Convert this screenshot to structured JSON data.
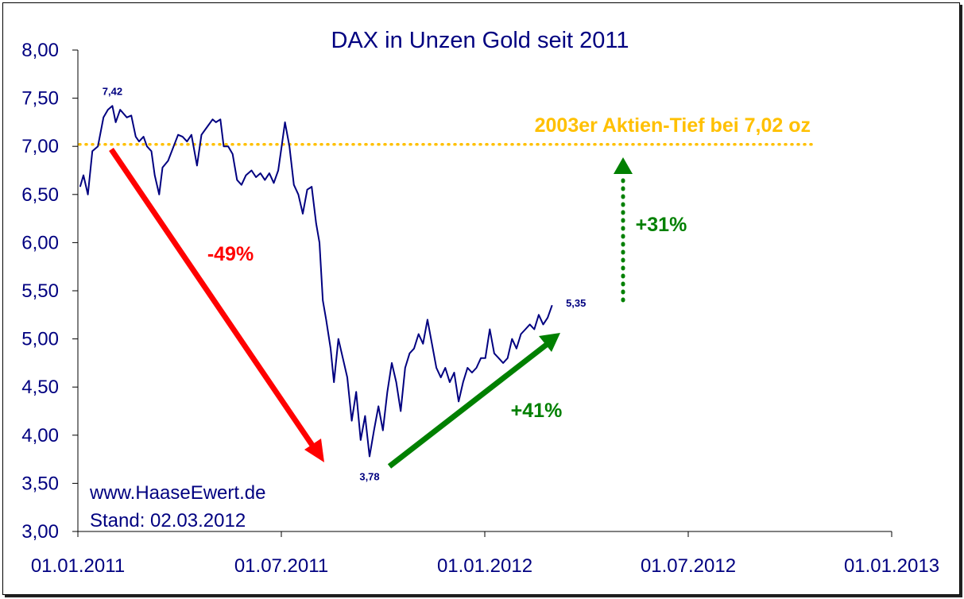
{
  "chart_data": {
    "type": "line",
    "title": "DAX in Unzen Gold seit 2011",
    "xlabel": "",
    "ylabel": "",
    "ylim": [
      3.0,
      8.0
    ],
    "xlim": [
      "2011-01-01",
      "2013-01-01"
    ],
    "y_ticks": [
      "3,00",
      "3,50",
      "4,00",
      "4,50",
      "5,00",
      "5,50",
      "6,00",
      "6,50",
      "7,00",
      "7,50",
      "8,00"
    ],
    "x_ticks": [
      "01.01.2011",
      "01.07.2011",
      "01.01.2012",
      "01.07.2012",
      "01.01.2013"
    ],
    "series": [
      {
        "color": "#000080",
        "points": [
          [
            "2011-01-03",
            6.58
          ],
          [
            "2011-01-06",
            6.7
          ],
          [
            "2011-01-10",
            6.5
          ],
          [
            "2011-01-14",
            6.95
          ],
          [
            "2011-01-19",
            7.0
          ],
          [
            "2011-01-24",
            7.3
          ],
          [
            "2011-01-28",
            7.38
          ],
          [
            "2011-02-01",
            7.42
          ],
          [
            "2011-02-04",
            7.25
          ],
          [
            "2011-02-08",
            7.38
          ],
          [
            "2011-02-14",
            7.3
          ],
          [
            "2011-02-18",
            7.32
          ],
          [
            "2011-02-22",
            7.1
          ],
          [
            "2011-02-25",
            7.05
          ],
          [
            "2011-03-01",
            7.1
          ],
          [
            "2011-03-04",
            7.0
          ],
          [
            "2011-03-08",
            6.95
          ],
          [
            "2011-03-11",
            6.7
          ],
          [
            "2011-03-15",
            6.5
          ],
          [
            "2011-03-18",
            6.78
          ],
          [
            "2011-03-23",
            6.85
          ],
          [
            "2011-03-28",
            7.0
          ],
          [
            "2011-04-01",
            7.12
          ],
          [
            "2011-04-05",
            7.1
          ],
          [
            "2011-04-09",
            7.05
          ],
          [
            "2011-04-13",
            7.12
          ],
          [
            "2011-04-18",
            6.8
          ],
          [
            "2011-04-22",
            7.12
          ],
          [
            "2011-04-27",
            7.2
          ],
          [
            "2011-05-02",
            7.28
          ],
          [
            "2011-05-05",
            7.25
          ],
          [
            "2011-05-09",
            7.28
          ],
          [
            "2011-05-12",
            7.0
          ],
          [
            "2011-05-16",
            7.0
          ],
          [
            "2011-05-20",
            6.92
          ],
          [
            "2011-05-24",
            6.65
          ],
          [
            "2011-05-28",
            6.6
          ],
          [
            "2011-06-01",
            6.7
          ],
          [
            "2011-06-06",
            6.75
          ],
          [
            "2011-06-10",
            6.68
          ],
          [
            "2011-06-14",
            6.72
          ],
          [
            "2011-06-18",
            6.65
          ],
          [
            "2011-06-22",
            6.72
          ],
          [
            "2011-06-26",
            6.62
          ],
          [
            "2011-06-30",
            6.75
          ],
          [
            "2011-07-03",
            7.0
          ],
          [
            "2011-07-06",
            7.25
          ],
          [
            "2011-07-10",
            7.0
          ],
          [
            "2011-07-14",
            6.6
          ],
          [
            "2011-07-18",
            6.5
          ],
          [
            "2011-07-22",
            6.3
          ],
          [
            "2011-07-26",
            6.55
          ],
          [
            "2011-07-30",
            6.58
          ],
          [
            "2011-08-03",
            6.2
          ],
          [
            "2011-08-06",
            6.0
          ],
          [
            "2011-08-09",
            5.4
          ],
          [
            "2011-08-12",
            5.2
          ],
          [
            "2011-08-16",
            4.9
          ],
          [
            "2011-08-19",
            4.55
          ],
          [
            "2011-08-23",
            5.0
          ],
          [
            "2011-08-27",
            4.8
          ],
          [
            "2011-08-31",
            4.6
          ],
          [
            "2011-09-04",
            4.15
          ],
          [
            "2011-09-08",
            4.45
          ],
          [
            "2011-09-12",
            3.95
          ],
          [
            "2011-09-16",
            4.2
          ],
          [
            "2011-09-20",
            3.78
          ],
          [
            "2011-09-24",
            4.05
          ],
          [
            "2011-09-28",
            4.3
          ],
          [
            "2011-10-02",
            4.05
          ],
          [
            "2011-10-06",
            4.45
          ],
          [
            "2011-10-10",
            4.75
          ],
          [
            "2011-10-14",
            4.55
          ],
          [
            "2011-10-18",
            4.25
          ],
          [
            "2011-10-22",
            4.7
          ],
          [
            "2011-10-26",
            4.85
          ],
          [
            "2011-10-30",
            4.9
          ],
          [
            "2011-11-03",
            5.05
          ],
          [
            "2011-11-07",
            4.95
          ],
          [
            "2011-11-11",
            5.2
          ],
          [
            "2011-11-15",
            4.95
          ],
          [
            "2011-11-19",
            4.7
          ],
          [
            "2011-11-23",
            4.6
          ],
          [
            "2011-11-27",
            4.7
          ],
          [
            "2011-12-01",
            4.55
          ],
          [
            "2011-12-05",
            4.65
          ],
          [
            "2011-12-09",
            4.35
          ],
          [
            "2011-12-13",
            4.55
          ],
          [
            "2011-12-17",
            4.7
          ],
          [
            "2011-12-21",
            4.65
          ],
          [
            "2011-12-25",
            4.7
          ],
          [
            "2011-12-29",
            4.8
          ],
          [
            "2012-01-02",
            4.8
          ],
          [
            "2012-01-06",
            5.1
          ],
          [
            "2012-01-10",
            4.85
          ],
          [
            "2012-01-14",
            4.8
          ],
          [
            "2012-01-18",
            4.75
          ],
          [
            "2012-01-22",
            4.8
          ],
          [
            "2012-01-26",
            5.0
          ],
          [
            "2012-01-30",
            4.9
          ],
          [
            "2012-02-03",
            5.05
          ],
          [
            "2012-02-07",
            5.1
          ],
          [
            "2012-02-11",
            5.15
          ],
          [
            "2012-02-15",
            5.1
          ],
          [
            "2012-02-19",
            5.25
          ],
          [
            "2012-02-23",
            5.15
          ],
          [
            "2012-02-27",
            5.22
          ],
          [
            "2012-03-02",
            5.35
          ]
        ]
      }
    ],
    "point_labels": [
      {
        "x": "2011-02-01",
        "y": 7.42,
        "text": "7,42"
      },
      {
        "x": "2011-09-20",
        "y": 3.78,
        "text": "3,78"
      },
      {
        "x": "2012-03-02",
        "y": 5.35,
        "text": "5,35"
      }
    ],
    "reference_line": {
      "y": 7.02,
      "label": "2003er Aktien-Tief bei 7,02 oz",
      "color": "#FFC000"
    },
    "annotations": [
      {
        "text": "-49%",
        "color": "#FF0000"
      },
      {
        "text": "+41%",
        "color": "#008000"
      },
      {
        "text": "+31%",
        "color": "#008000"
      }
    ],
    "notes": [
      "www.HaaseEwert.de",
      "Stand: 02.03.2012"
    ]
  }
}
